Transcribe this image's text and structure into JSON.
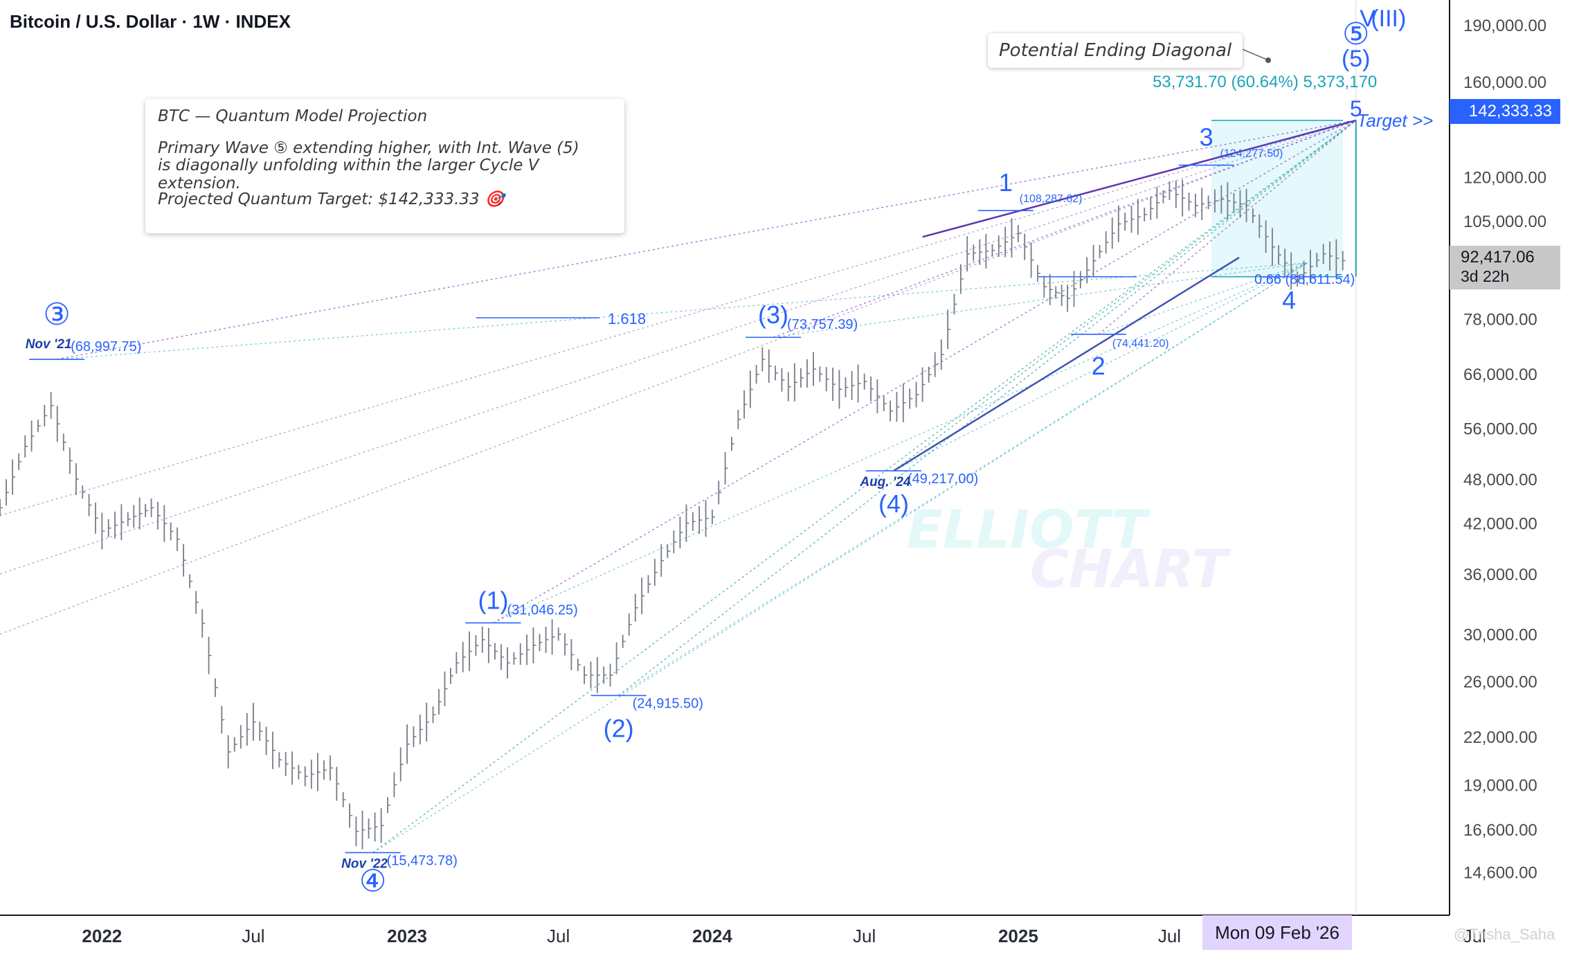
{
  "header": {
    "title": "Bitcoin / U.S. Dollar · 1W · INDEX"
  },
  "note": {
    "title": "BTC — Quantum Model Projection",
    "line1": "Primary Wave ⑤ extending higher, with Int. Wave (5)",
    "line2": "is diagonally unfolding within the larger Cycle V extension.",
    "line3": "Projected Quantum Target: $142,333.33 🎯"
  },
  "diagonal_note": "Potential Ending Diagonal",
  "projection_label": "53,731.70 (60.64%) 5,373,170",
  "target_label": "- Target >>",
  "price_tags": {
    "target": "142,333.33",
    "last_price": "92,417.06",
    "countdown": "3d 22h"
  },
  "crosshair_date": "Mon 09 Feb '26",
  "watermark": {
    "line1": "ELLIOTT",
    "line2": "CHART",
    "author": "@Trisha_Saha"
  },
  "colors": {
    "wave": "#2962ff",
    "teal": "#1ca3b8",
    "purple": "#7e57c2",
    "bars": "#787b86",
    "target_box": "#e0f7fa"
  },
  "chart_data": {
    "type": "line",
    "title": "Bitcoin / U.S. Dollar · 1W · INDEX",
    "y_scale": "log",
    "ylim": [
      12800,
      205000
    ],
    "y_ticks": [
      "190,000.00",
      "160,000.00",
      "120,000.00",
      "105,000.00",
      "78,000.00",
      "66,000.00",
      "56,000.00",
      "48,000.00",
      "42,000.00",
      "36,000.00",
      "30,000.00",
      "26,000.00",
      "22,000.00",
      "19,000.00",
      "16,600.00",
      "14,600.00"
    ],
    "x_ticks": [
      "2022",
      "Jul",
      "2023",
      "Jul",
      "2024",
      "Jul",
      "2025",
      "Jul",
      "Jul"
    ],
    "xlim": [
      "2021-09",
      "2026-06"
    ],
    "series": [
      {
        "x": [
          "2021-09",
          "2021-10",
          "2021-11",
          "2021-12",
          "2022-01",
          "2022-02",
          "2022-03",
          "2022-04",
          "2022-05",
          "2022-06",
          "2022-07",
          "2022-08",
          "2022-09",
          "2022-10",
          "2022-11",
          "2022-12",
          "2023-01",
          "2023-02",
          "2023-03",
          "2023-04",
          "2023-05",
          "2023-06",
          "2023-07",
          "2023-08",
          "2023-09",
          "2023-10",
          "2023-11",
          "2023-12",
          "2024-01",
          "2024-02",
          "2024-03",
          "2024-04",
          "2024-05",
          "2024-06",
          "2024-07",
          "2024-08",
          "2024-09",
          "2024-10",
          "2024-11",
          "2024-12",
          "2025-01",
          "2025-02",
          "2025-03",
          "2025-04",
          "2025-05",
          "2025-06",
          "2025-07",
          "2025-08",
          "2025-09",
          "2025-10",
          "2025-11",
          "2025-12",
          "2026-01",
          "2026-02"
        ],
        "values": [
          44000,
          53000,
          60000,
          48000,
          41000,
          42500,
          44000,
          40000,
          31000,
          21000,
          23000,
          20500,
          19500,
          20000,
          16500,
          16800,
          21500,
          23500,
          27500,
          29500,
          27500,
          29000,
          30000,
          26500,
          26500,
          32500,
          37500,
          42000,
          42800,
          57500,
          69000,
          63500,
          67000,
          63000,
          64500,
          59000,
          62000,
          70000,
          95000,
          96000,
          101000,
          86000,
          83000,
          93000,
          104000,
          107000,
          115000,
          110000,
          112000,
          110000,
          97000,
          88000,
          95000,
          92417.06
        ]
      }
    ],
    "waves": [
      {
        "label": "③",
        "x": "2021-11-08",
        "y": 68997.75,
        "price_label": "(68,997.75)",
        "date_label": "Nov '21"
      },
      {
        "label": "④",
        "x": "2022-11-21",
        "y": 15473.78,
        "price_label": "(15,473.78)",
        "date_label": "Nov '22"
      },
      {
        "label": "(1)",
        "x": "2023-04-14",
        "y": 31046.25,
        "price_label": "(31,046.25)"
      },
      {
        "label": "(2)",
        "x": "2023-09-11",
        "y": 24915.5,
        "price_label": "(24,915.50)"
      },
      {
        "label": "(3)",
        "x": "2024-03-14",
        "y": 73757.39,
        "price_label": "(73,757.39)"
      },
      {
        "label": "(4)",
        "x": "2024-08-05",
        "y": 49217.0,
        "price_label": "(49,217.00)",
        "date_label": "Aug. '24"
      },
      {
        "label": "1",
        "x": "2024-12-17",
        "y": 108287.62,
        "price_label": "(108,287.62)"
      },
      {
        "label": "2",
        "x": "2025-04-07",
        "y": 74441.2,
        "price_label": "(74,441.20)"
      },
      {
        "label": "3",
        "x": "2025-08-14",
        "y": 124277.5,
        "price_label": "(124,277.50)"
      },
      {
        "label": "4",
        "x": "2025-11-21",
        "y": 88611.54,
        "price_label": "0.66 (88,611.54)"
      },
      {
        "label": "5",
        "x": "2026-02-09",
        "y": 142333.33
      },
      {
        "label": "(5)",
        "x": "2026-02-09"
      },
      {
        "label": "⑤",
        "x": "2026-02-09"
      },
      {
        "label": "V",
        "x": "2026-02-23"
      },
      {
        "label": "(III)",
        "x": "2026-03-20"
      }
    ],
    "fib_label": "1.618",
    "target": 142333.33,
    "last_price": 92417.06
  }
}
